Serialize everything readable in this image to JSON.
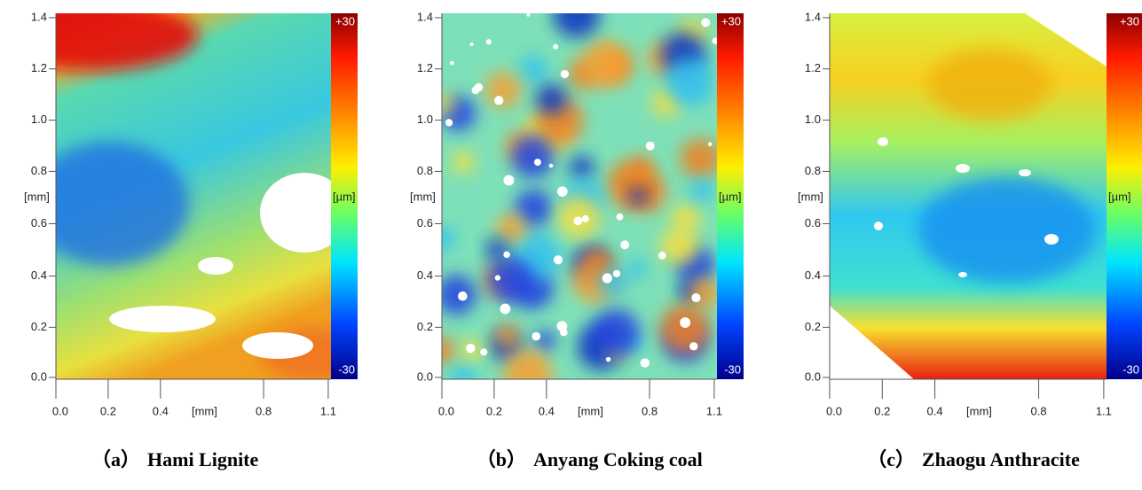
{
  "panels": [
    {
      "label": "（a）",
      "name": "Hami Lignite",
      "y_ticks": [
        "1.4",
        "1.2",
        "1.0",
        "0.8",
        "0.6",
        "0.4",
        "0.2",
        "0.0"
      ],
      "y_unit": "[mm]",
      "x_ticks": [
        "0.0",
        "0.2",
        "0.4",
        "[mm]",
        "0.8",
        "1.1"
      ],
      "colorbar": {
        "top": "+30",
        "unit": "[µm]",
        "bottom": "-30"
      }
    },
    {
      "label": "（b）",
      "name": "Anyang Coking coal",
      "y_ticks": [
        "1.4",
        "1.2",
        "1.0",
        "0.8",
        "0.6",
        "0.4",
        "0.2",
        "0.0"
      ],
      "y_unit": "[mm]",
      "x_ticks": [
        "0.0",
        "0.2",
        "0.4",
        "[mm]",
        "0.8",
        "1.1"
      ],
      "colorbar": {
        "top": "+30",
        "unit": "[µm]",
        "bottom": "-30"
      }
    },
    {
      "label": "（c）",
      "name": "Zhaogu Anthracite",
      "y_ticks": [
        "1.4",
        "1.2",
        "1.0",
        "0.8",
        "0.6",
        "0.4",
        "0.2",
        "0.0"
      ],
      "y_unit": "[mm]",
      "x_ticks": [
        "0.0",
        "0.2",
        "0.4",
        "[mm]",
        "0.8",
        "1.1"
      ],
      "colorbar": {
        "top": "+30",
        "unit": "[µm]",
        "bottom": "-30"
      }
    }
  ]
}
